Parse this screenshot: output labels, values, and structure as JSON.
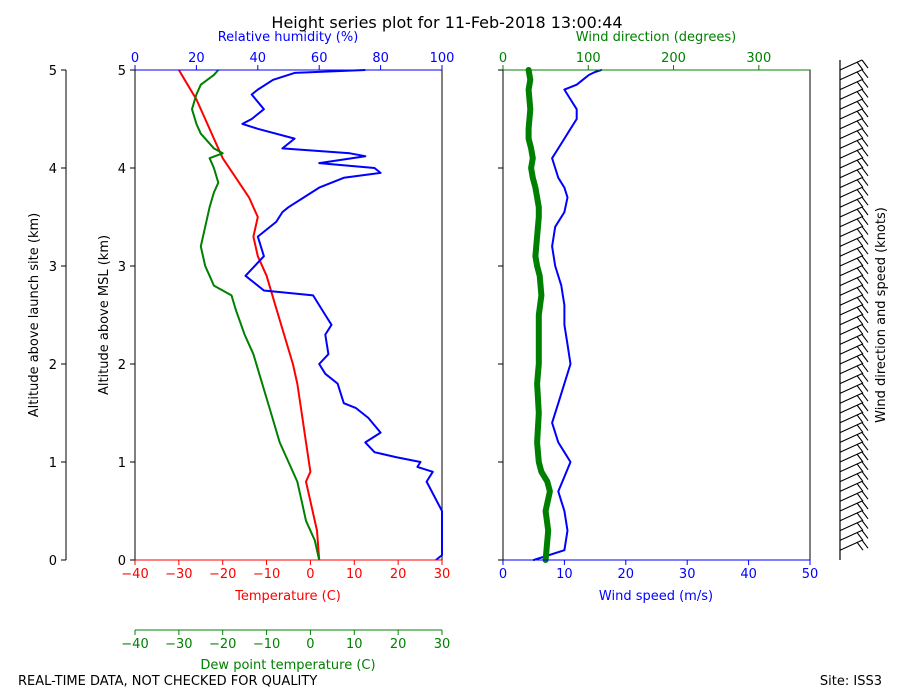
{
  "title": "Height series plot for 11-Feb-2018 13:00:44",
  "footer": {
    "left": "REAL-TIME DATA, NOT CHECKED FOR QUALITY",
    "right": "Site: ISS3"
  },
  "colors": {
    "temperature": "#ff0000",
    "dewpoint": "#008000",
    "humidity": "#0000ff",
    "wind_speed": "#0000ff",
    "wind_direction": "#008000",
    "barb": "#000000"
  },
  "chart_data": [
    {
      "type": "line",
      "panel": "thermo",
      "ylabel_launch": "Altitude above launch site (km)",
      "ylabel_msl": "Altitude above MSL (km)",
      "ylim": [
        0,
        5
      ],
      "yticks": [
        "0",
        "1",
        "2",
        "3",
        "4",
        "5"
      ],
      "temperature_axis": {
        "label": "Temperature (C)",
        "range": [
          -40,
          30
        ],
        "ticks": [
          "−40",
          "−30",
          "−20",
          "−10",
          "0",
          "10",
          "20",
          "30"
        ]
      },
      "dewpoint_axis": {
        "label": "Dew point temperature (C)",
        "range": [
          -40,
          30
        ],
        "ticks": [
          "−40",
          "−30",
          "−20",
          "−10",
          "0",
          "10",
          "20",
          "30"
        ]
      },
      "humidity_axis": {
        "label": "Relative humidity (%)",
        "range": [
          0,
          100
        ],
        "ticks": [
          "0",
          "20",
          "40",
          "60",
          "80",
          "100"
        ]
      },
      "series": [
        {
          "name": "Temperature",
          "axis": "temperature",
          "x": [
            2,
            1.5,
            0,
            -1,
            0,
            -1,
            -2,
            -3,
            -4,
            -6,
            -8,
            -10,
            -12,
            -13,
            -12,
            -14,
            -17,
            -20,
            -22,
            -24,
            -26,
            -28,
            -30
          ],
          "y": [
            0,
            0.3,
            0.6,
            0.8,
            0.9,
            1.2,
            1.5,
            1.8,
            2.0,
            2.3,
            2.6,
            2.9,
            3.1,
            3.3,
            3.5,
            3.7,
            3.9,
            4.1,
            4.3,
            4.5,
            4.7,
            4.85,
            5.0
          ]
        },
        {
          "name": "Dew point",
          "axis": "dewpoint",
          "x": [
            2,
            1,
            -1,
            -2,
            -3,
            -5,
            -7,
            -9,
            -11,
            -13,
            -15,
            -17,
            -18,
            -22,
            -23,
            -24,
            -25,
            -24,
            -23,
            -22,
            -21,
            -22,
            -23,
            -20,
            -22,
            -24,
            -25,
            -26,
            -27,
            -26,
            -25,
            -22,
            -21
          ],
          "y": [
            0,
            0.2,
            0.4,
            0.6,
            0.8,
            1.0,
            1.2,
            1.5,
            1.8,
            2.1,
            2.3,
            2.55,
            2.7,
            2.8,
            2.9,
            3.0,
            3.2,
            3.4,
            3.6,
            3.75,
            3.85,
            4.0,
            4.1,
            4.15,
            4.2,
            4.3,
            4.35,
            4.45,
            4.6,
            4.75,
            4.85,
            4.95,
            5.0
          ]
        },
        {
          "name": "Relative humidity",
          "axis": "humidity",
          "x": [
            98,
            100,
            100,
            95,
            97,
            92,
            93,
            85,
            78,
            75,
            80,
            76,
            72,
            68,
            66,
            62,
            60,
            63,
            62,
            64,
            62,
            58,
            42,
            36,
            42,
            40,
            46,
            48,
            50,
            55,
            60,
            68,
            80,
            78,
            60,
            75,
            70,
            48,
            52,
            40,
            35,
            38,
            42,
            38,
            40,
            45,
            52,
            75
          ],
          "y": [
            0,
            0.05,
            0.5,
            0.8,
            0.9,
            0.95,
            1.0,
            1.05,
            1.1,
            1.2,
            1.3,
            1.45,
            1.55,
            1.6,
            1.8,
            1.9,
            2.0,
            2.1,
            2.3,
            2.4,
            2.5,
            2.7,
            2.75,
            2.9,
            3.1,
            3.3,
            3.45,
            3.55,
            3.6,
            3.7,
            3.8,
            3.9,
            3.95,
            4.0,
            4.05,
            4.12,
            4.15,
            4.2,
            4.3,
            4.4,
            4.45,
            4.5,
            4.6,
            4.75,
            4.8,
            4.9,
            4.97,
            5.0
          ]
        }
      ]
    },
    {
      "type": "line",
      "panel": "wind",
      "ylim": [
        0,
        5
      ],
      "wind_speed_axis": {
        "label": "Wind speed (m/s)",
        "range": [
          0,
          50
        ],
        "ticks": [
          "0",
          "10",
          "20",
          "30",
          "40",
          "50"
        ]
      },
      "wind_direction_axis": {
        "label": "Wind direction (degrees)",
        "range": [
          0,
          360
        ],
        "ticks": [
          "0",
          "100",
          "200",
          "300"
        ]
      },
      "series": [
        {
          "name": "Wind speed",
          "axis": "wind_speed",
          "x": [
            5,
            10,
            10.5,
            10,
            9.5,
            9,
            10,
            11,
            10,
            9,
            8,
            9,
            10,
            11,
            10.5,
            10,
            10,
            9.5,
            8.5,
            8,
            8.5,
            10,
            10.5,
            10,
            9,
            8.5,
            8,
            9,
            10,
            11,
            12,
            12,
            11,
            10,
            12,
            13,
            14,
            15,
            16
          ],
          "y": [
            0,
            0.1,
            0.3,
            0.5,
            0.6,
            0.7,
            0.85,
            1.0,
            1.1,
            1.2,
            1.4,
            1.6,
            1.8,
            2.0,
            2.2,
            2.4,
            2.6,
            2.8,
            3.0,
            3.2,
            3.4,
            3.55,
            3.7,
            3.8,
            3.9,
            4.0,
            4.1,
            4.2,
            4.3,
            4.4,
            4.5,
            4.6,
            4.7,
            4.8,
            4.85,
            4.9,
            4.95,
            4.98,
            5.0
          ]
        },
        {
          "name": "Wind direction",
          "axis": "wind_direction",
          "x": [
            50,
            53,
            50,
            55,
            52,
            45,
            42,
            40,
            42,
            40,
            42,
            42,
            42,
            45,
            43,
            40,
            38,
            40,
            42,
            42,
            40,
            38,
            35,
            33,
            35,
            33,
            30,
            30,
            32,
            30,
            32,
            30
          ],
          "y": [
            0,
            0.3,
            0.5,
            0.7,
            0.8,
            0.9,
            1.0,
            1.2,
            1.5,
            1.8,
            2.0,
            2.2,
            2.5,
            2.7,
            2.9,
            3.0,
            3.1,
            3.3,
            3.5,
            3.6,
            3.7,
            3.8,
            3.9,
            4.0,
            4.1,
            4.2,
            4.3,
            4.4,
            4.6,
            4.8,
            4.9,
            5.0
          ]
        }
      ]
    },
    {
      "type": "barbs",
      "panel": "barbs",
      "label": "Wind direction and speed (knots)",
      "ylim": [
        0,
        5
      ],
      "altitudes_km": [
        0.1,
        0.2,
        0.3,
        0.4,
        0.5,
        0.6,
        0.7,
        0.8,
        0.9,
        1.0,
        1.1,
        1.2,
        1.3,
        1.4,
        1.5,
        1.6,
        1.7,
        1.8,
        1.9,
        2.0,
        2.1,
        2.2,
        2.3,
        2.4,
        2.5,
        2.6,
        2.7,
        2.8,
        2.9,
        3.0,
        3.1,
        3.2,
        3.3,
        3.4,
        3.5,
        3.6,
        3.7,
        3.8,
        3.9,
        4.0,
        4.1,
        4.2,
        4.3,
        4.4,
        4.5,
        4.6,
        4.7,
        4.8,
        4.9,
        5.0
      ],
      "barb_count": 50
    }
  ]
}
